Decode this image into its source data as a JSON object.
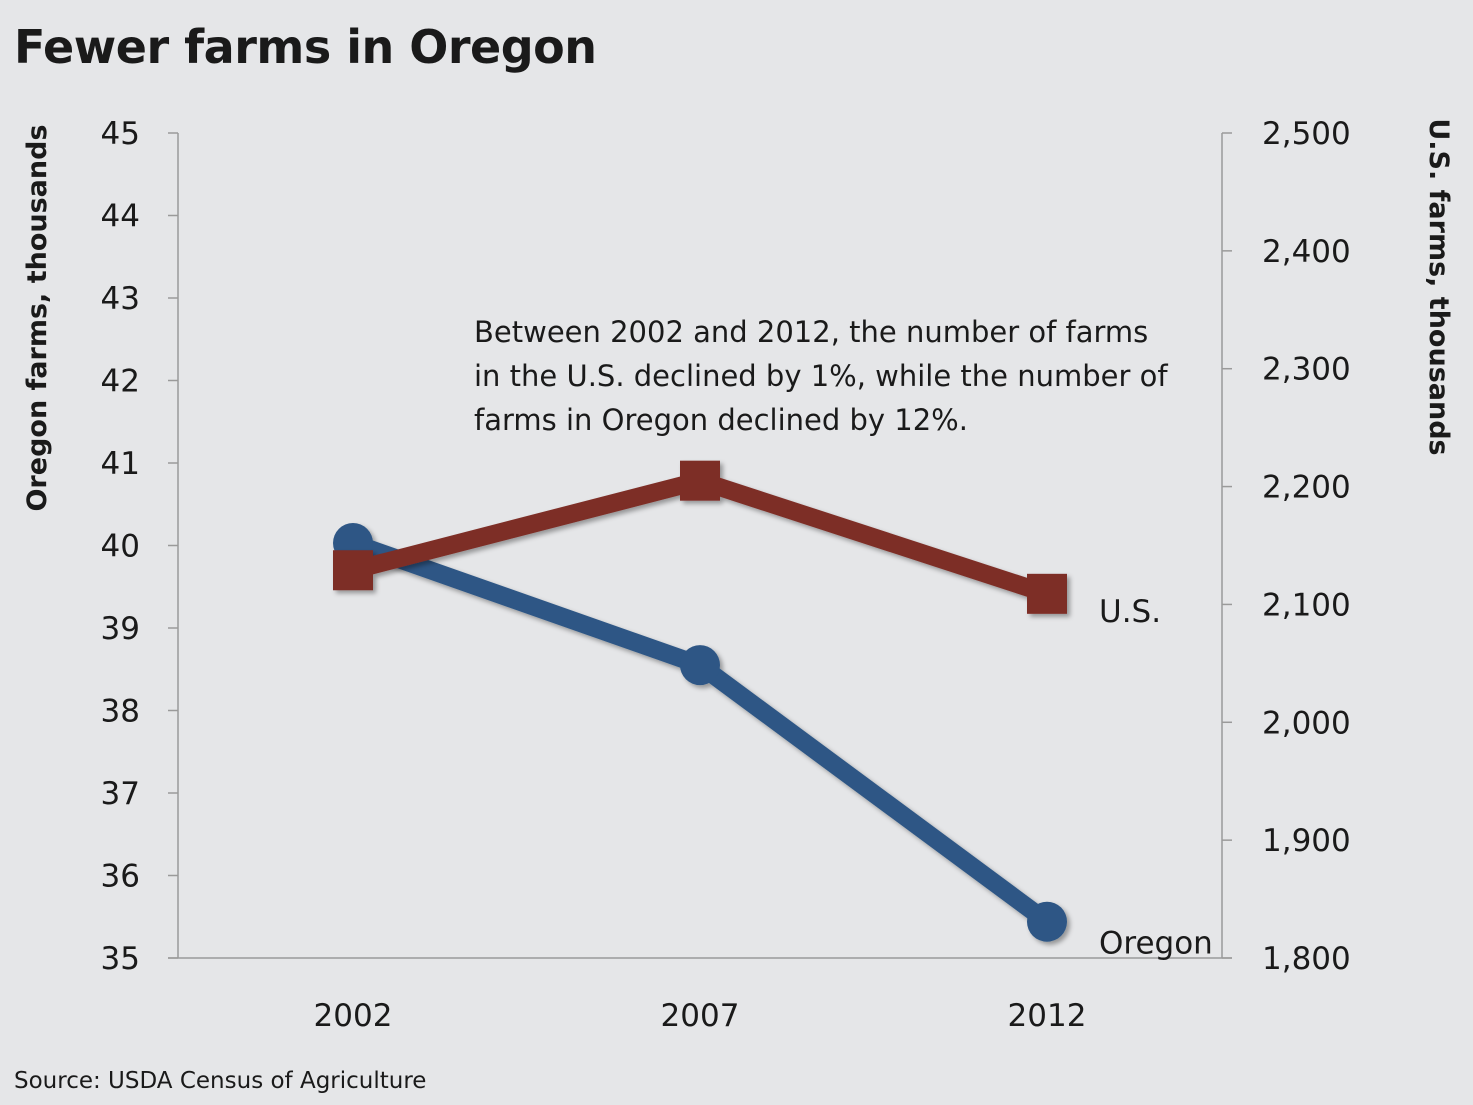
{
  "chart_data": {
    "type": "line",
    "title": "Fewer farms in Oregon",
    "source": "Source: USDA Census of Agriculture",
    "x": [
      "2002",
      "2007",
      "2012"
    ],
    "left_axis": {
      "label": "Oregon farms, thousands",
      "range": [
        35,
        45
      ],
      "ticks": [
        "35",
        "36",
        "37",
        "38",
        "39",
        "40",
        "41",
        "42",
        "43",
        "44",
        "45"
      ]
    },
    "right_axis": {
      "label": "U.S. farms, thousands",
      "range": [
        1800,
        2500
      ],
      "ticks": [
        "1,800",
        "1,900",
        "2,000",
        "2,100",
        "2,200",
        "2,300",
        "2,400",
        "2,500"
      ]
    },
    "series": [
      {
        "name": "Oregon",
        "axis": "left",
        "values": [
          40.03,
          38.55,
          35.44
        ],
        "color": "#2d5785",
        "marker": "circle"
      },
      {
        "name": "U.S.",
        "axis": "right",
        "values": [
          2129,
          2205,
          2109
        ],
        "color": "#7d2e27",
        "marker": "square"
      }
    ],
    "annotation": [
      "Between 2002 and 2012, the number of farms",
      "in the U.S. declined by 1%, while the number of",
      "farms in Oregon declined by 12%."
    ],
    "grid": false
  }
}
